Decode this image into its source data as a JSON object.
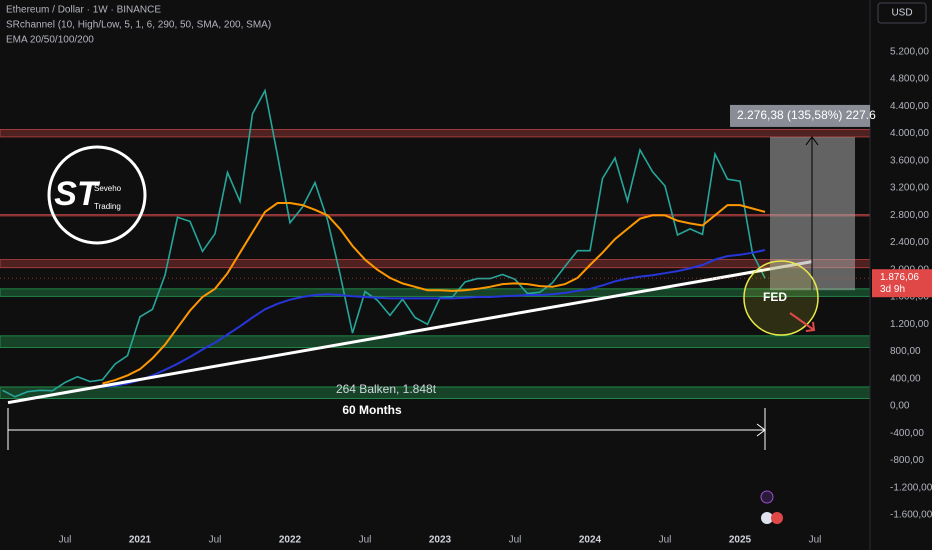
{
  "chart_data": {
    "type": "line",
    "title": "Ethereum / Dollar · 1W · BINANCE",
    "indicators": [
      "SRchannel (10, High/Low, 5, 1, 6, 290, 50, SMA, 200, SMA)",
      "EMA 20/50/100/200"
    ],
    "currency": "USD",
    "categories": [
      null,
      null,
      null,
      null,
      null,
      "Jul",
      null,
      null,
      null,
      null,
      null,
      "2021",
      null,
      null,
      null,
      null,
      null,
      "Jul",
      null,
      null,
      null,
      null,
      null,
      "2022",
      null,
      null,
      null,
      null,
      null,
      "Jul",
      null,
      null,
      null,
      null,
      null,
      "2023",
      null,
      null,
      null,
      null,
      null,
      "Jul",
      null,
      null,
      null,
      null,
      null,
      "2024",
      null,
      null,
      null,
      null,
      null,
      "Jul",
      null,
      null,
      null,
      null,
      null,
      "2025",
      null,
      null,
      null,
      null,
      null,
      "Jul",
      null,
      null,
      null,
      null
    ],
    "series": [
      {
        "color": "#26a69a",
        "values": [
          230,
          135,
          210,
          230,
          225,
          345,
          430,
          360,
          385,
          615,
          740,
          1310,
          1420,
          1920,
          2770,
          2710,
          2270,
          2530,
          3430,
          3000,
          4290,
          4630,
          3680,
          2690,
          2920,
          3280,
          2730,
          1940,
          1070,
          1680,
          1550,
          1330,
          1570,
          1300,
          1200,
          1590,
          1600,
          1820,
          1870,
          1870,
          1930,
          1860,
          1650,
          1670,
          1810,
          2050,
          2280,
          2280,
          3340,
          3640,
          3010,
          3760,
          3440,
          3230,
          2510,
          2600,
          2520,
          3700,
          3330,
          3300,
          2240,
          1876.06,
          null,
          null,
          null,
          null,
          null,
          null,
          null,
          null
        ]
      },
      {
        "color": "#ff9800",
        "values": [
          null,
          null,
          null,
          null,
          null,
          null,
          null,
          null,
          330,
          380,
          450,
          540,
          700,
          900,
          1150,
          1400,
          1600,
          1720,
          1950,
          2250,
          2550,
          2850,
          2980,
          2980,
          2950,
          2880,
          2800,
          2600,
          2350,
          2150,
          2000,
          1880,
          1800,
          1750,
          1700,
          1700,
          1690,
          1700,
          1720,
          1750,
          1790,
          1800,
          1790,
          1760,
          1750,
          1790,
          1880,
          2070,
          2250,
          2450,
          2600,
          2750,
          2800,
          2800,
          2720,
          2680,
          2650,
          2800,
          2950,
          2950,
          2900,
          2850,
          null,
          null,
          null,
          null,
          null,
          null,
          null,
          null
        ]
      },
      {
        "color": "#2636d8",
        "values": [
          null,
          null,
          null,
          null,
          null,
          null,
          null,
          null,
          280,
          300,
          330,
          380,
          450,
          530,
          620,
          720,
          830,
          930,
          1050,
          1170,
          1300,
          1420,
          1500,
          1560,
          1600,
          1630,
          1640,
          1630,
          1610,
          1600,
          1590,
          1580,
          1580,
          1580,
          1580,
          1580,
          1580,
          1590,
          1600,
          1600,
          1610,
          1620,
          1630,
          1630,
          1640,
          1660,
          1690,
          1720,
          1770,
          1830,
          1870,
          1900,
          1920,
          1950,
          1980,
          2020,
          2070,
          2150,
          2200,
          2220,
          2250,
          2290,
          null,
          null,
          null,
          null,
          null,
          null,
          null,
          null
        ]
      }
    ],
    "ylim": [
      -1820,
      5960
    ],
    "yticks": [
      {
        "value": 5200,
        "label": "5.200,00"
      },
      {
        "value": 4800,
        "label": "4.800,00"
      },
      {
        "value": 4400,
        "label": "4.400,00"
      },
      {
        "value": 4000,
        "label": "4.000,00"
      },
      {
        "value": 3600,
        "label": "3.600,00"
      },
      {
        "value": 3200,
        "label": "3.200,00"
      },
      {
        "value": 2800,
        "label": "2.800,00"
      },
      {
        "value": 2400,
        "label": "2.400,00"
      },
      {
        "value": 2000,
        "label": "2.000,00"
      },
      {
        "value": 1600,
        "label": "1.600,00"
      },
      {
        "value": 1200,
        "label": "1.200,00"
      },
      {
        "value": 800,
        "label": "800,00"
      },
      {
        "value": 400,
        "label": "400,00"
      },
      {
        "value": 0,
        "label": "0,00"
      },
      {
        "value": -400,
        "label": "-400,00"
      },
      {
        "value": -800,
        "label": "-800,00"
      },
      {
        "value": -1200,
        "label": "-1.200,00"
      },
      {
        "value": -1600,
        "label": "-1.600,00"
      }
    ],
    "grid": false,
    "zones": [
      {
        "range": [
          3950,
          4060
        ],
        "color": "rgba(200,70,70,0.35)"
      },
      {
        "range": [
          2790,
          2810
        ],
        "color": "rgba(200,70,70,0.45)"
      },
      {
        "range": [
          2030,
          2150
        ],
        "color": "rgba(200,70,70,0.35)"
      },
      {
        "range": [
          1610,
          1720
        ],
        "color": "rgba(40,170,90,0.35)"
      },
      {
        "range": [
          860,
          1030
        ],
        "color": "rgba(40,170,90,0.35)"
      },
      {
        "range": [
          110,
          280
        ],
        "color": "rgba(40,170,90,0.35)"
      }
    ],
    "trendline": [
      50,
      2120
    ],
    "measure": {
      "range": [
        1700,
        3950
      ],
      "label": "2.276,38 (135,58%) 227.6"
    },
    "last_price": {
      "value": 1876.06,
      "label": "1.876,06"
    },
    "countdown": "3d 9h",
    "annotations": {
      "bars": "264 Balken, 1.848t",
      "span": "60 Months",
      "event": "FED",
      "logo": "ST",
      "logo_line1": "Seveho",
      "logo_line2": "Trading"
    }
  }
}
